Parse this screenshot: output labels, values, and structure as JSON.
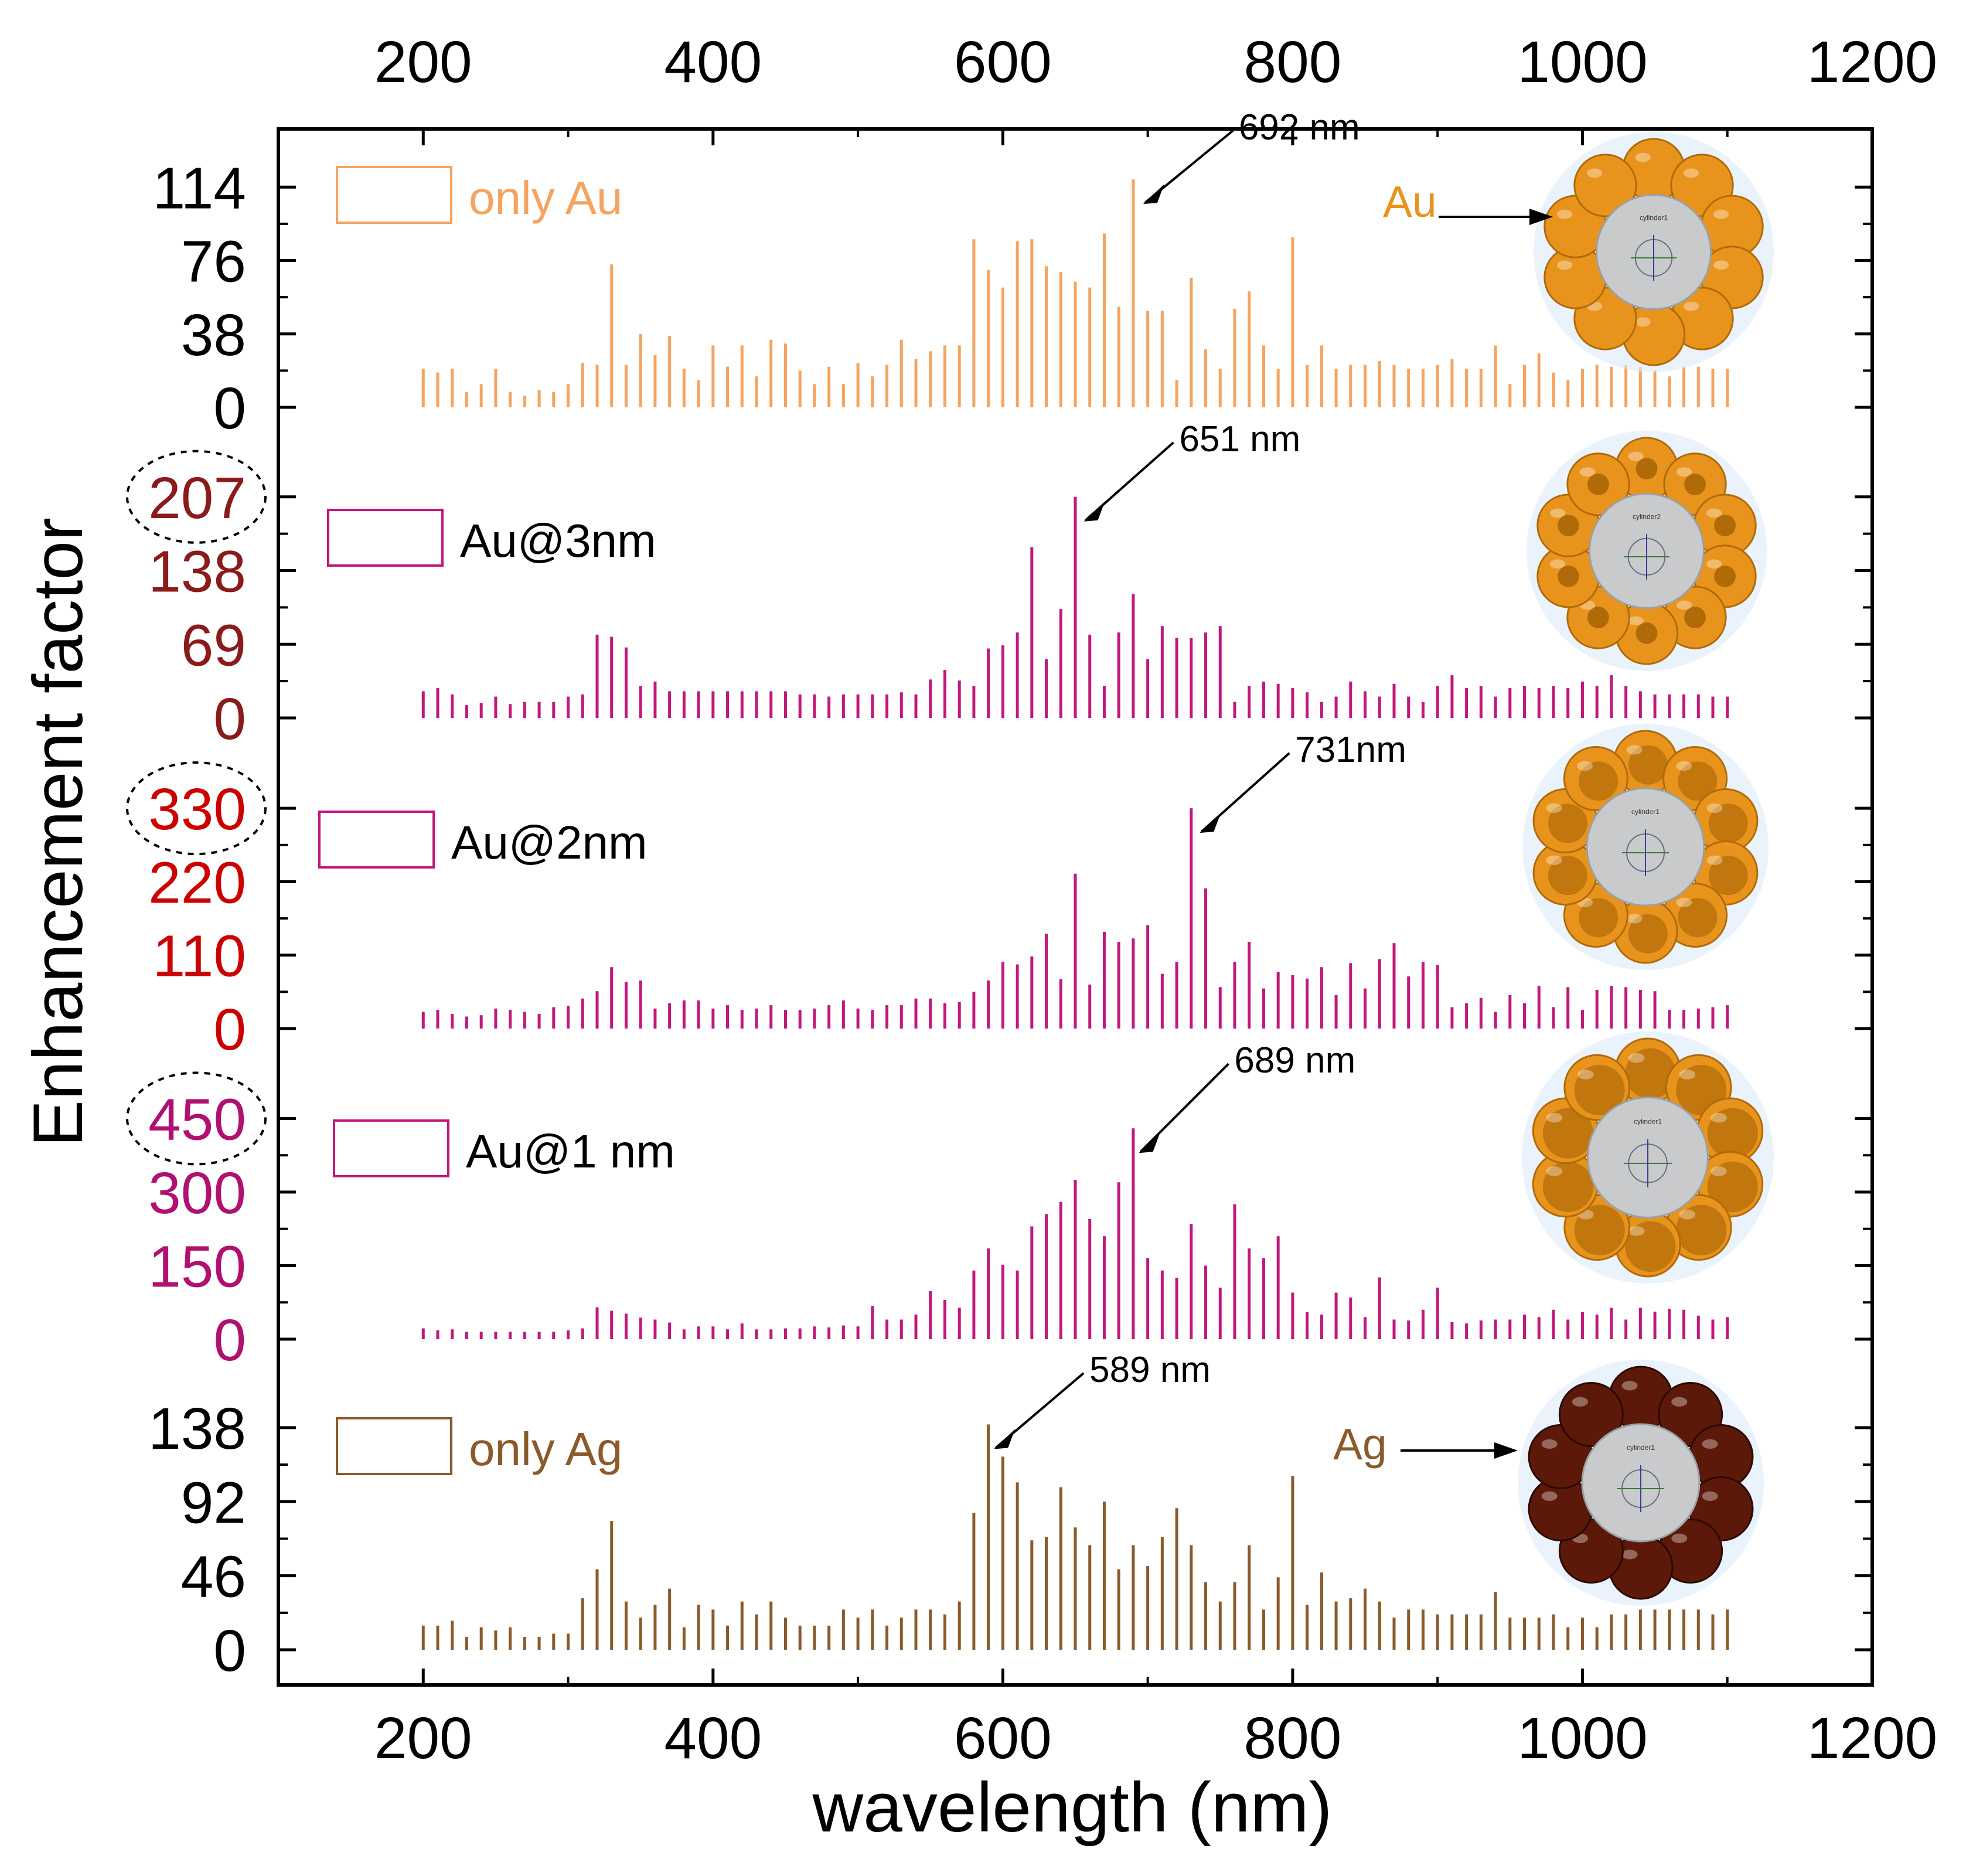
{
  "chart_data": {
    "type": "bar",
    "title": "",
    "xlabel": "wavelength (nm)",
    "ylabel": "Enhancement factor",
    "xlim": [
      100,
      1200
    ],
    "xticks": [
      200,
      400,
      600,
      800,
      1000,
      1200
    ],
    "x": [
      200,
      210,
      220,
      230,
      240,
      250,
      260,
      270,
      280,
      290,
      300,
      310,
      320,
      330,
      340,
      350,
      360,
      370,
      380,
      390,
      400,
      410,
      420,
      430,
      440,
      450,
      460,
      470,
      480,
      490,
      500,
      510,
      520,
      530,
      540,
      550,
      560,
      570,
      580,
      590,
      600,
      610,
      620,
      630,
      640,
      650,
      660,
      670,
      680,
      690,
      700,
      710,
      720,
      730,
      740,
      750,
      760,
      770,
      780,
      790,
      800,
      810,
      820,
      830,
      840,
      850,
      860,
      870,
      880,
      890,
      900,
      910,
      920,
      930,
      940,
      950,
      960,
      970,
      980,
      990,
      1000,
      1010,
      1020,
      1030,
      1040,
      1050,
      1060,
      1070,
      1080,
      1090,
      1100
    ],
    "series": [
      {
        "name": "only Au",
        "legend": "only Au",
        "color": "#F4A460",
        "yticks": [
          0,
          38,
          76,
          114
        ],
        "ylim": [
          0,
          125
        ],
        "tick_color": "#000000",
        "circled_max": false,
        "peak_label": "692 nm",
        "peak_x": 692,
        "material_label": "Au",
        "values": [
          20,
          18,
          20,
          8,
          12,
          20,
          8,
          6,
          9,
          8,
          12,
          23,
          22,
          74,
          22,
          38,
          27,
          37,
          20,
          14,
          32,
          21,
          32,
          16,
          35,
          33,
          19,
          12,
          21,
          12,
          23,
          16,
          22,
          35,
          25,
          29,
          32,
          32,
          87,
          71,
          62,
          86,
          87,
          73,
          70,
          65,
          62,
          90,
          52,
          118,
          50,
          50,
          14,
          67,
          30,
          20,
          51,
          60,
          32,
          20,
          88,
          22,
          32,
          20,
          22,
          22,
          24,
          22,
          20,
          20,
          22,
          25,
          20,
          20,
          32,
          12,
          22,
          28,
          18,
          14,
          20,
          22,
          21,
          22,
          21,
          19,
          16,
          21,
          21,
          20,
          20
        ]
      },
      {
        "name": "Au@3nm",
        "legend": "Au@3nm",
        "color": "#C0187C",
        "yticks": [
          0,
          69,
          138,
          207
        ],
        "ylim": [
          0,
          225
        ],
        "tick_color": "#8B1A1A",
        "circled_max": true,
        "peak_label": "651 nm",
        "peak_x": 651,
        "material_label": "",
        "values": [
          25,
          28,
          22,
          12,
          14,
          20,
          13,
          15,
          15,
          15,
          20,
          22,
          78,
          76,
          66,
          30,
          34,
          25,
          25,
          25,
          25,
          25,
          25,
          25,
          25,
          25,
          22,
          22,
          20,
          22,
          22,
          22,
          22,
          24,
          22,
          36,
          45,
          35,
          30,
          65,
          68,
          80,
          160,
          55,
          102,
          207,
          78,
          30,
          80,
          116,
          55,
          86,
          75,
          75,
          80,
          86,
          15,
          30,
          34,
          32,
          28,
          24,
          15,
          20,
          34,
          25,
          20,
          32,
          20,
          15,
          30,
          40,
          28,
          30,
          20,
          28,
          30,
          28,
          30,
          28,
          34,
          30,
          40,
          30,
          25,
          22,
          22,
          22,
          22,
          20,
          20
        ]
      },
      {
        "name": "Au@2nm",
        "legend": "Au@2nm",
        "color": "#C0187C",
        "yticks": [
          0,
          110,
          220,
          330
        ],
        "ylim": [
          0,
          360
        ],
        "tick_color": "#CC0000",
        "circled_max": true,
        "peak_label": "731nm",
        "peak_x": 731,
        "material_label": "",
        "values": [
          25,
          28,
          22,
          18,
          20,
          30,
          28,
          25,
          22,
          32,
          34,
          45,
          56,
          92,
          70,
          72,
          30,
          38,
          42,
          42,
          30,
          35,
          28,
          30,
          35,
          28,
          28,
          30,
          35,
          42,
          30,
          28,
          35,
          35,
          45,
          45,
          38,
          40,
          55,
          72,
          100,
          96,
          108,
          142,
          74,
          232,
          66,
          145,
          130,
          135,
          155,
          82,
          100,
          330,
          210,
          62,
          100,
          130,
          60,
          85,
          80,
          75,
          92,
          50,
          98,
          60,
          104,
          128,
          78,
          100,
          95,
          32,
          38,
          46,
          25,
          50,
          38,
          64,
          32,
          62,
          28,
          58,
          64,
          62,
          58,
          56,
          28,
          28,
          30,
          32,
          35
        ]
      },
      {
        "name": "Au@1 nm",
        "legend": "Au@1 nm",
        "color": "#C0187C",
        "yticks": [
          0,
          150,
          300,
          450
        ],
        "ylim": [
          0,
          490
        ],
        "tick_color": "#B01070",
        "circled_max": true,
        "peak_label": "689 nm",
        "peak_x": 689,
        "material_label": "",
        "values": [
          22,
          18,
          20,
          15,
          15,
          15,
          15,
          15,
          15,
          15,
          18,
          22,
          65,
          58,
          52,
          44,
          40,
          34,
          20,
          26,
          26,
          20,
          32,
          20,
          20,
          22,
          22,
          26,
          24,
          28,
          26,
          68,
          40,
          40,
          50,
          98,
          80,
          64,
          140,
          185,
          152,
          140,
          230,
          255,
          280,
          325,
          245,
          210,
          320,
          430,
          165,
          140,
          125,
          235,
          150,
          105,
          275,
          185,
          165,
          210,
          95,
          55,
          50,
          95,
          85,
          45,
          126,
          40,
          38,
          60,
          105,
          35,
          32,
          38,
          40,
          40,
          50,
          45,
          60,
          40,
          55,
          50,
          64,
          40,
          64,
          56,
          62,
          60,
          48,
          40,
          45
        ]
      },
      {
        "name": "only Ag",
        "legend": "only Ag",
        "color": "#8B5A2B",
        "yticks": [
          0,
          46,
          92,
          138
        ],
        "ylim": [
          0,
          150
        ],
        "tick_color": "#000000",
        "circled_max": false,
        "peak_label": "589 nm",
        "peak_x": 589,
        "material_label": "Ag",
        "values": [
          15,
          15,
          18,
          8,
          14,
          12,
          14,
          8,
          8,
          10,
          10,
          32,
          50,
          80,
          30,
          20,
          28,
          38,
          14,
          28,
          25,
          15,
          30,
          22,
          30,
          20,
          15,
          15,
          15,
          25,
          20,
          25,
          15,
          20,
          25,
          25,
          22,
          30,
          85,
          140,
          120,
          104,
          68,
          70,
          101,
          76,
          65,
          92,
          50,
          65,
          52,
          70,
          88,
          65,
          42,
          30,
          42,
          65,
          25,
          45,
          108,
          28,
          48,
          30,
          32,
          38,
          30,
          20,
          25,
          25,
          22,
          22,
          22,
          22,
          36,
          20,
          20,
          20,
          22,
          14,
          20,
          14,
          22,
          22,
          25,
          25,
          25,
          25,
          25,
          22,
          25
        ]
      }
    ]
  },
  "figure": {
    "top_axis_ticks": [
      "200",
      "400",
      "600",
      "800",
      "1000",
      "1200"
    ],
    "bottom_axis_ticks": [
      "200",
      "400",
      "600",
      "800",
      "1000",
      "1200"
    ],
    "inset_labels": [
      "cylinder1",
      "cylinder2",
      "cylinder1",
      "cylinder1",
      "cylinder1"
    ],
    "sphere_colors": {
      "gold": "#E8941C",
      "gold_dark": "#B06A08",
      "silver_core": "#C8CACC",
      "ag": "#5C1808",
      "ag_dark": "#2A0A02",
      "halo": "#DCEBFA"
    }
  }
}
